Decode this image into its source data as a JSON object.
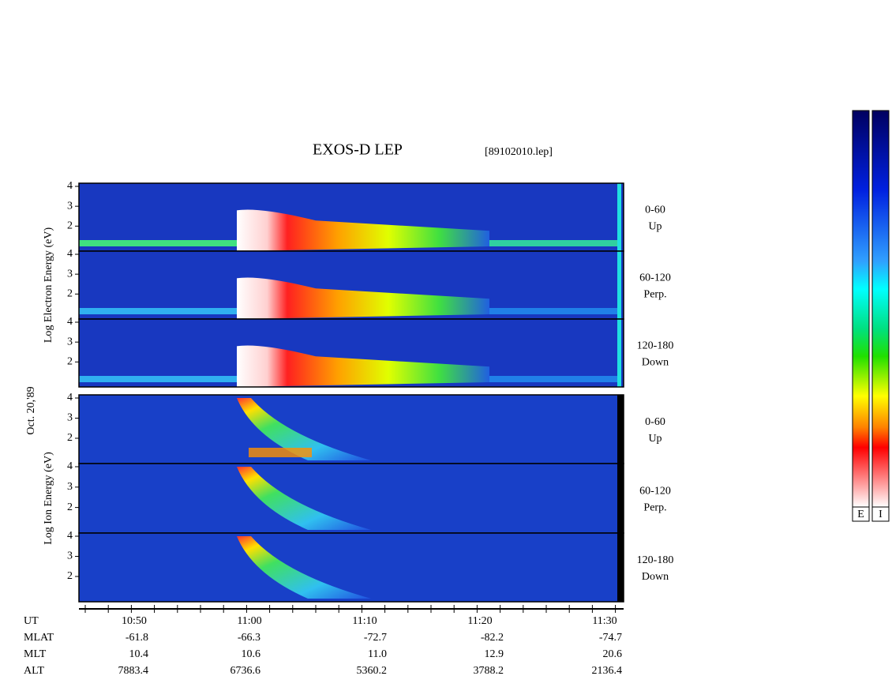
{
  "header": {
    "title": "EXOS-D LEP",
    "file": "[89102010.lep]"
  },
  "date": "Oct. 20,'89",
  "groups": [
    {
      "axis_label": "Log   Electron   Energy (eV)",
      "panels": [
        {
          "label_1": "0-60",
          "label_2": "Up",
          "ticks": [
            "4",
            "3",
            "2"
          ]
        },
        {
          "label_1": "60-120",
          "label_2": "Perp.",
          "ticks": [
            "4",
            "3",
            "2"
          ]
        },
        {
          "label_1": "120-180",
          "label_2": "Down",
          "ticks": [
            "4",
            "3",
            "2"
          ]
        }
      ]
    },
    {
      "axis_label": "Log   Ion   Energy (eV)",
      "panels": [
        {
          "label_1": "0-60",
          "label_2": "Up",
          "ticks": [
            "4",
            "3",
            "2"
          ]
        },
        {
          "label_1": "60-120",
          "label_2": "Perp.",
          "ticks": [
            "4",
            "3",
            "2"
          ]
        },
        {
          "label_1": "120-180",
          "label_2": "Down",
          "ticks": [
            "4",
            "3",
            "2"
          ]
        }
      ]
    }
  ],
  "ephemeris": {
    "rows": [
      {
        "label": "UT",
        "values": [
          "10:50",
          "11:00",
          "11:10",
          "11:20",
          "11:30"
        ]
      },
      {
        "label": "MLAT",
        "values": [
          "-61.8",
          "-66.3",
          "-72.7",
          "-82.2",
          "-74.7"
        ]
      },
      {
        "label": "MLT",
        "values": [
          "10.4",
          "10.6",
          "11.0",
          "12.9",
          "20.6"
        ]
      },
      {
        "label": "ALT",
        "values": [
          "7883.4",
          "6736.6",
          "5360.2",
          "3788.2",
          "2136.4"
        ]
      }
    ]
  },
  "colorbar": {
    "labels": [
      "E",
      "I"
    ]
  }
}
